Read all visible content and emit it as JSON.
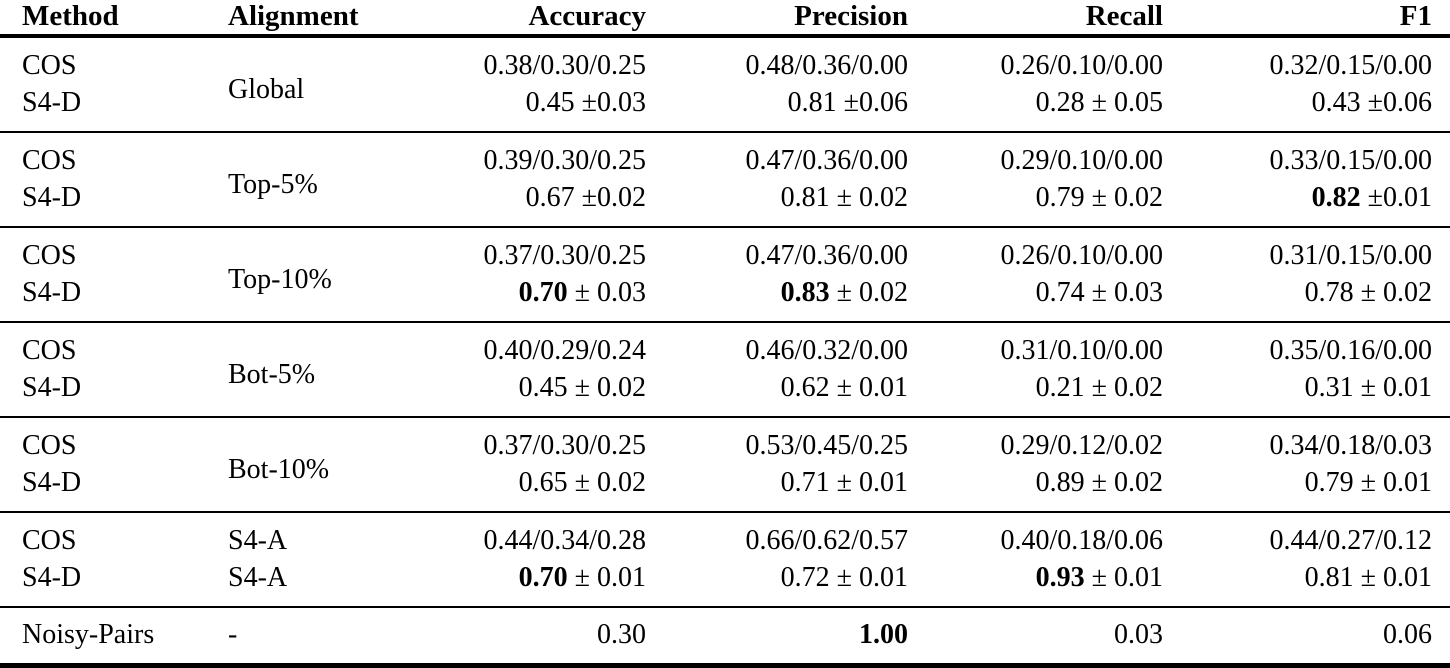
{
  "table": {
    "columns": [
      {
        "label": "Method"
      },
      {
        "label": "Alignment"
      },
      {
        "label": "Accuracy"
      },
      {
        "label": "Precision"
      },
      {
        "label": "Recall"
      },
      {
        "label": "F1"
      }
    ],
    "groups": [
      {
        "alignment": "Global",
        "cos": {
          "method": "COS",
          "accuracy": "0.38/0.30/0.25",
          "precision": "0.48/0.36/0.00",
          "recall": "0.26/0.10/0.00",
          "f1": "0.32/0.15/0.00"
        },
        "s4d": {
          "method": "S4-D",
          "accuracy": {
            "v": "0.45",
            "pm": "±0.03",
            "cls": ""
          },
          "precision": {
            "v": "0.81",
            "pm": "±0.06",
            "cls": ""
          },
          "recall": {
            "v": "0.28",
            "pm": "± 0.05",
            "cls": ""
          },
          "f1": {
            "v": "0.43",
            "pm": "±0.06",
            "cls": ""
          }
        }
      },
      {
        "alignment": "Top-5%",
        "cos": {
          "method": "COS",
          "accuracy": "0.39/0.30/0.25",
          "precision": "0.47/0.36/0.00",
          "recall": "0.29/0.10/0.00",
          "f1": "0.33/0.15/0.00"
        },
        "s4d": {
          "method": "S4-D",
          "accuracy": {
            "v": "0.67",
            "pm": "±0.02",
            "cls": ""
          },
          "precision": {
            "v": "0.81",
            "pm": "± 0.02",
            "cls": ""
          },
          "recall": {
            "v": "0.79",
            "pm": "± 0.02",
            "cls": ""
          },
          "f1": {
            "v": "0.82",
            "pm": "±0.01",
            "cls": "b"
          }
        }
      },
      {
        "alignment": "Top-10%",
        "cos": {
          "method": "COS",
          "accuracy": "0.37/0.30/0.25",
          "precision": "0.47/0.36/0.00",
          "recall": "0.26/0.10/0.00",
          "f1": "0.31/0.15/0.00"
        },
        "s4d": {
          "method": "S4-D",
          "accuracy": {
            "v": "0.70",
            "pm": "± 0.03",
            "cls": "b"
          },
          "precision": {
            "v": "0.83",
            "pm": "± 0.02",
            "cls": "b"
          },
          "recall": {
            "v": "0.74",
            "pm": "± 0.03",
            "cls": ""
          },
          "f1": {
            "v": "0.78",
            "pm": "± 0.02",
            "cls": ""
          }
        }
      },
      {
        "alignment": "Bot-5%",
        "cos": {
          "method": "COS",
          "accuracy": "0.40/0.29/0.24",
          "precision": "0.46/0.32/0.00",
          "recall": "0.31/0.10/0.00",
          "f1": "0.35/0.16/0.00"
        },
        "s4d": {
          "method": "S4-D",
          "accuracy": {
            "v": "0.45",
            "pm": "± 0.02",
            "cls": ""
          },
          "precision": {
            "v": "0.62",
            "pm": "± 0.01",
            "cls": ""
          },
          "recall": {
            "v": "0.21",
            "pm": "± 0.02",
            "cls": ""
          },
          "f1": {
            "v": "0.31",
            "pm": "± 0.01",
            "cls": ""
          }
        }
      },
      {
        "alignment": "Bot-10%",
        "cos": {
          "method": "COS",
          "accuracy": "0.37/0.30/0.25",
          "precision": "0.53/0.45/0.25",
          "recall": "0.29/0.12/0.02",
          "f1": "0.34/0.18/0.03"
        },
        "s4d": {
          "method": "S4-D",
          "accuracy": {
            "v": "0.65",
            "pm": "± 0.02",
            "cls": ""
          },
          "precision": {
            "v": "0.71",
            "pm": "± 0.01",
            "cls": ""
          },
          "recall": {
            "v": "0.89",
            "pm": "± 0.02",
            "cls": ""
          },
          "f1": {
            "v": "0.79",
            "pm": "± 0.01",
            "cls": ""
          }
        }
      },
      {
        "cos": {
          "method": "COS",
          "alignment": "S4-A",
          "accuracy": "0.44/0.34/0.28",
          "precision": "0.66/0.62/0.57",
          "recall": "0.40/0.18/0.06",
          "f1": "0.44/0.27/0.12"
        },
        "s4d": {
          "method": "S4-D",
          "alignment": "S4-A",
          "accuracy": {
            "v": "0.70",
            "pm": "± 0.01",
            "cls": "b"
          },
          "precision": {
            "v": "0.72",
            "pm": "± 0.01",
            "cls": ""
          },
          "recall": {
            "v": "0.93",
            "pm": "± 0.01",
            "cls": "b"
          },
          "f1": {
            "v": "0.81",
            "pm": "± 0.01",
            "cls": ""
          }
        }
      }
    ],
    "baseline": {
      "method": "Noisy-Pairs",
      "alignment": "-",
      "accuracy": {
        "v": "0.30",
        "cls": ""
      },
      "precision": {
        "v": "1.00",
        "cls": "b"
      },
      "recall": {
        "v": "0.03",
        "cls": ""
      },
      "f1": {
        "v": "0.06",
        "cls": ""
      }
    },
    "colors": {
      "text": "#000000",
      "background": "#ffffff",
      "rule": "#000000"
    }
  }
}
